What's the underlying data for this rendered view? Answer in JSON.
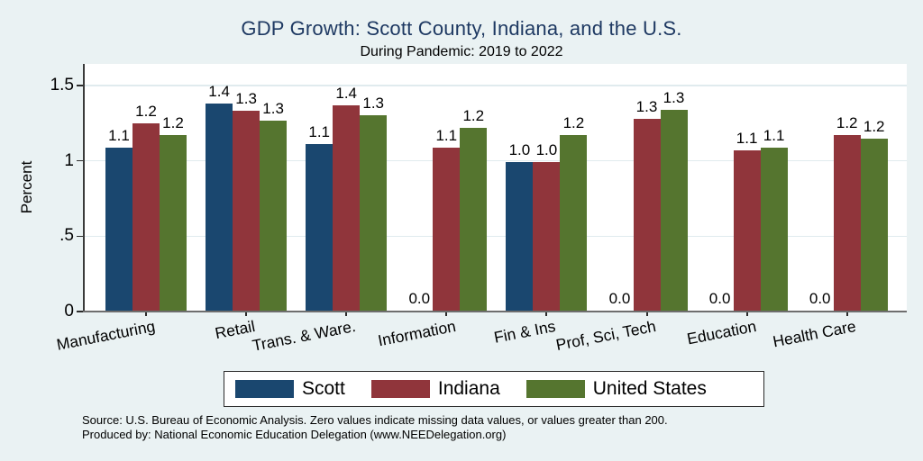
{
  "title": "GDP Growth: Scott County, Indiana, and the U.S.",
  "subtitle": "During Pandemic: 2019 to 2022",
  "footer": {
    "line1": "Source: U.S. Bureau of Economic Analysis. Zero values indicate missing data values, or values greater than 200.",
    "line2": "Produced by: National Economic Education Delegation (www.NEEDelegation.org)"
  },
  "colors": {
    "background": "#eaf2f3",
    "plot_background": "#ffffff",
    "gridline": "#e0ebee",
    "title_text": "#1e3962",
    "scott": "#1a476f",
    "indiana": "#90353b",
    "united_states": "#55752f",
    "x_axis_line": "#6e6e6e",
    "y_axis_line": "#3a3a3a"
  },
  "chart_data": {
    "type": "bar",
    "title": "GDP Growth: Scott County, Indiana, and the U.S.",
    "subtitle": "During Pandemic: 2019 to 2022",
    "xlabel": "",
    "ylabel": "Percent",
    "ylim": [
      0,
      1.65
    ],
    "grid": true,
    "legend_position": "bottom",
    "yticks": [
      {
        "value": 0,
        "label": "0"
      },
      {
        "value": 0.5,
        "label": ".5"
      },
      {
        "value": 1,
        "label": "1"
      },
      {
        "value": 1.5,
        "label": "1.5"
      }
    ],
    "categories": [
      "Manufacturing",
      "Retail",
      "Trans. & Ware.",
      "Information",
      "Fin & Ins",
      "Prof, Sci, Tech",
      "Education",
      "Health Care"
    ],
    "series": [
      {
        "name": "Scott",
        "color": "#1a476f",
        "values": [
          1.09,
          1.38,
          1.11,
          0,
          0.99,
          0,
          0,
          0
        ],
        "labels": [
          "1.1",
          "1.4",
          "1.1",
          "0.0",
          "1.0",
          "0.0",
          "0.0",
          "0.0"
        ]
      },
      {
        "name": "Indiana",
        "color": "#90353b",
        "values": [
          1.25,
          1.33,
          1.37,
          1.09,
          0.99,
          1.28,
          1.07,
          1.17
        ],
        "labels": [
          "1.2",
          "1.3",
          "1.4",
          "1.1",
          "1.0",
          "1.3",
          "1.1",
          "1.2"
        ]
      },
      {
        "name": "United States",
        "color": "#55752f",
        "values": [
          1.17,
          1.27,
          1.3,
          1.22,
          1.17,
          1.34,
          1.09,
          1.15
        ],
        "labels": [
          "1.2",
          "1.3",
          "1.3",
          "1.2",
          "1.2",
          "1.3",
          "1.1",
          "1.2"
        ]
      }
    ]
  },
  "legend": {
    "items": [
      {
        "label": "Scott",
        "color": "#1a476f"
      },
      {
        "label": "Indiana",
        "color": "#90353b"
      },
      {
        "label": "United States",
        "color": "#55752f"
      }
    ]
  }
}
